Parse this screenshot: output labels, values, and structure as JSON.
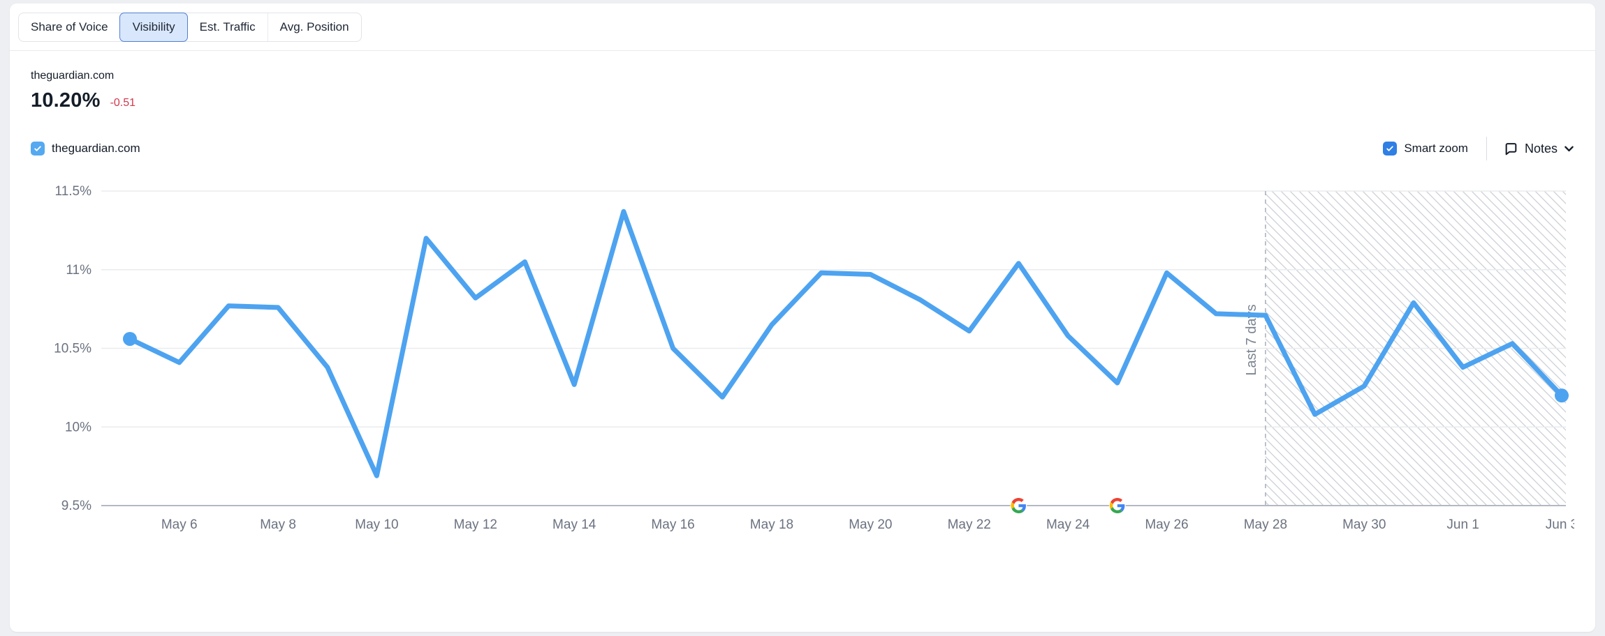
{
  "tabs": {
    "items": [
      {
        "label": "Share of Voice",
        "selected": false
      },
      {
        "label": "Visibility",
        "selected": true
      },
      {
        "label": "Est. Traffic",
        "selected": false
      },
      {
        "label": "Avg. Position",
        "selected": false
      }
    ]
  },
  "header": {
    "domain": "theguardian.com",
    "value": "10.20%",
    "change": "-0.51"
  },
  "legend": {
    "checkbox_label": "theguardian.com",
    "checked": true
  },
  "controls": {
    "smart_zoom_label": "Smart zoom",
    "smart_zoom_checked": true,
    "notes_label": "Notes"
  },
  "colors": {
    "line": "#4da3f0",
    "legend_checkbox": "#55a9f0",
    "smart_zoom_checkbox": "#2f7fe4",
    "selected_tab_bg": "#d9e7fc",
    "selected_tab_border": "#507fd2",
    "change_negative": "#d2394e",
    "axis_text": "#6b7280",
    "gridline": "#e9ebee",
    "axis_line": "#b3b9c2",
    "hatch_line": "#c9cdd3",
    "dashed_boundary": "#adb3bc",
    "forecast_label_text": "#7b8490"
  },
  "chart_data": {
    "type": "line",
    "title": "theguardian.com visibility",
    "x": [
      "May 5",
      "May 6",
      "May 7",
      "May 8",
      "May 9",
      "May 10",
      "May 11",
      "May 12",
      "May 13",
      "May 14",
      "May 15",
      "May 16",
      "May 17",
      "May 18",
      "May 19",
      "May 20",
      "May 21",
      "May 22",
      "May 23",
      "May 24",
      "May 25",
      "May 26",
      "May 27",
      "May 28",
      "May 29",
      "May 30",
      "May 31",
      "Jun 1",
      "Jun 2",
      "Jun 3"
    ],
    "series": [
      {
        "name": "theguardian.com",
        "values": [
          10.56,
          10.41,
          10.77,
          10.76,
          10.38,
          9.69,
          11.2,
          10.82,
          11.05,
          10.27,
          11.37,
          10.5,
          10.19,
          10.65,
          10.98,
          10.97,
          10.81,
          10.61,
          11.04,
          10.58,
          10.28,
          10.98,
          10.72,
          10.71,
          10.08,
          10.26,
          10.79,
          10.38,
          10.53,
          10.2
        ]
      }
    ],
    "x_tick_labels": [
      "May 6",
      "May 8",
      "May 10",
      "May 12",
      "May 14",
      "May 16",
      "May 18",
      "May 20",
      "May 22",
      "May 24",
      "May 26",
      "May 28",
      "May 30",
      "Jun 1",
      "Jun 3"
    ],
    "y_ticks": [
      11.5,
      11,
      10.5,
      10,
      9.5
    ],
    "y_tick_labels": [
      "11.5%",
      "11%",
      "10.5%",
      "10%",
      "9.5%"
    ],
    "ylim": [
      9.5,
      11.5
    ],
    "grid": true,
    "legend_position": "top-left",
    "forecast_region": {
      "label": "Last 7 days",
      "start_x": "May 28"
    },
    "annotations": [
      {
        "type": "google-update",
        "x": "May 23"
      },
      {
        "type": "google-update",
        "x": "May 25"
      }
    ]
  }
}
